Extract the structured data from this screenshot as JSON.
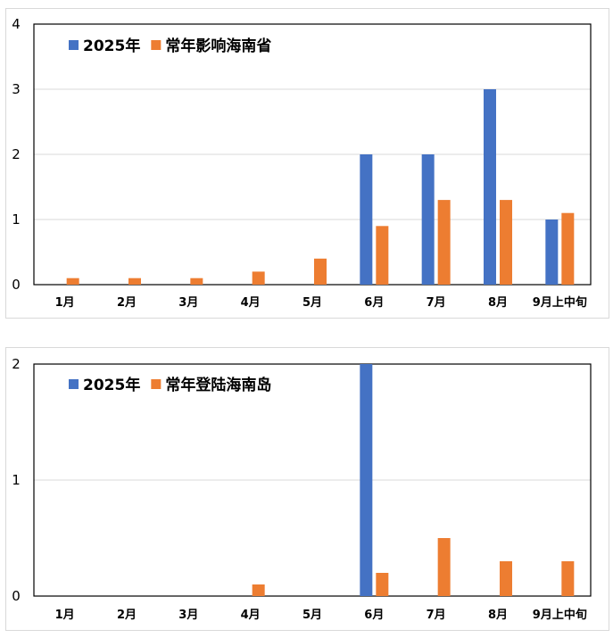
{
  "chart_data": [
    {
      "type": "bar",
      "categories": [
        "1月",
        "2月",
        "3月",
        "4月",
        "5月",
        "6月",
        "7月",
        "8月",
        "9月上中旬"
      ],
      "series": [
        {
          "name": "2025年",
          "color": "#4472C4",
          "values": [
            0,
            0,
            0,
            0,
            0,
            2,
            2,
            3,
            1
          ]
        },
        {
          "name": "常年影响海南省",
          "color": "#ED7D31",
          "values": [
            0.1,
            0.1,
            0.1,
            0.2,
            0.4,
            0.9,
            1.3,
            1.3,
            1.1
          ]
        }
      ],
      "yticks": [
        "0",
        "1",
        "2",
        "3",
        "4"
      ],
      "ylim": [
        0,
        4
      ],
      "grid": true,
      "legend": "top-left"
    },
    {
      "type": "bar",
      "categories": [
        "1月",
        "2月",
        "3月",
        "4月",
        "5月",
        "6月",
        "7月",
        "8月",
        "9月上中旬"
      ],
      "series": [
        {
          "name": "2025年",
          "color": "#4472C4",
          "values": [
            0,
            0,
            0,
            0,
            0,
            2,
            0,
            0,
            0
          ]
        },
        {
          "name": "常年登陆海南岛",
          "color": "#ED7D31",
          "values": [
            0,
            0,
            0,
            0.1,
            0,
            0.2,
            0.5,
            0.3,
            0.3
          ]
        }
      ],
      "yticks": [
        "0",
        "1",
        "2"
      ],
      "ylim": [
        0,
        2
      ],
      "grid": true,
      "legend": "top-left"
    }
  ]
}
